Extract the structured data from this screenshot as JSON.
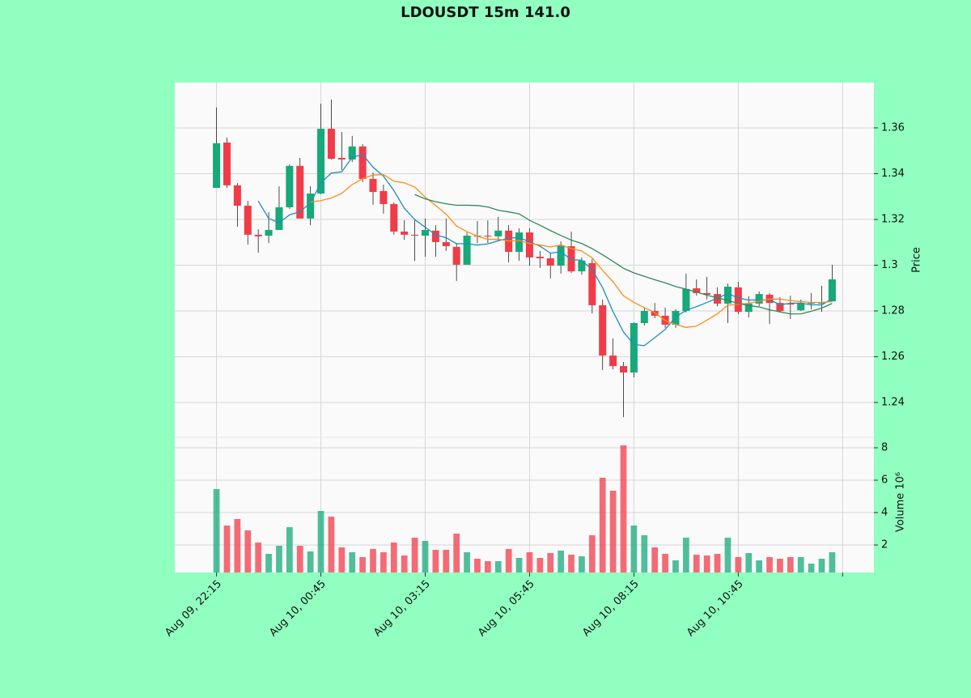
{
  "chart_data": {
    "type": "candlestick",
    "title": "LDOUSDT 15m 141.0",
    "ylabel": "Price",
    "volume_label": "Volume  10⁶",
    "up_color": "#16a97a",
    "down_color": "#f23b48",
    "grid": true,
    "xlim": [
      -4,
      63
    ],
    "xticks": [
      {
        "value": 0,
        "label": "Aug 09, 22:15"
      },
      {
        "value": 10,
        "label": "Aug 10, 00:45"
      },
      {
        "value": 20,
        "label": "Aug 10, 03:15"
      },
      {
        "value": 30,
        "label": "Aug 10, 05:45"
      },
      {
        "value": 40,
        "label": "Aug 10, 08:15"
      },
      {
        "value": 50,
        "label": "Aug 10, 10:45"
      },
      {
        "value": 60,
        "label": null
      }
    ],
    "ylim": [
      1.2248,
      1.3798
    ],
    "yticks": [
      1.24,
      1.26,
      1.28,
      1.3,
      1.32,
      1.34,
      1.36
    ],
    "volume_ylim": [
      0.3,
      8.65
    ],
    "volume_ticks": [
      2,
      4,
      6,
      8
    ],
    "moving_averages": [
      {
        "period": 5,
        "color": "#1a8fc0"
      },
      {
        "period": 10,
        "color": "#ff8c1a"
      },
      {
        "period": 20,
        "color": "#2e8b57"
      }
    ],
    "open": [
      1.3338,
      1.3536,
      1.3349,
      1.326,
      1.3133,
      1.3129,
      1.3154,
      1.3253,
      1.3434,
      1.3204,
      1.3313,
      1.3596,
      1.3469,
      1.3462,
      1.3519,
      1.3377,
      1.3324,
      1.3267,
      1.3147,
      1.3133,
      1.3129,
      1.3151,
      1.3101,
      1.308,
      1.3002,
      1.3129,
      1.3129,
      1.3126,
      1.3151,
      1.3058,
      1.3143,
      1.3037,
      1.303,
      1.2998,
      1.3083,
      1.2973,
      1.3009,
      1.2825,
      1.2605,
      1.2559,
      1.2531,
      1.2747,
      1.28,
      1.2779,
      1.274,
      1.28,
      1.2899,
      1.2878,
      1.2874,
      1.2832,
      1.2903,
      1.2796,
      1.2832,
      1.2871,
      1.2835,
      1.2832,
      1.2803,
      1.2832,
      1.2832,
      1.2842
    ],
    "high": [
      1.3689,
      1.3558,
      1.3359,
      1.3281,
      1.3157,
      1.3232,
      1.3345,
      1.3441,
      1.3469,
      1.3345,
      1.3706,
      1.3724,
      1.3582,
      1.3565,
      1.3529,
      1.3405,
      1.3352,
      1.3274,
      1.3196,
      1.3196,
      1.3204,
      1.3175,
      1.3204,
      1.3097,
      1.3143,
      1.3193,
      1.3196,
      1.3211,
      1.3175,
      1.3161,
      1.3161,
      1.3062,
      1.3055,
      1.3104,
      1.3147,
      1.3034,
      1.3027,
      1.285,
      1.268,
      1.2577,
      1.275,
      1.2814,
      1.2835,
      1.2814,
      1.2807,
      1.2963,
      1.2938,
      1.2949,
      1.2903,
      1.292,
      1.2927,
      1.2864,
      1.2885,
      1.2878,
      1.286,
      1.2867,
      1.285,
      1.2878,
      1.291,
      1.3002
    ],
    "low": [
      1.3338,
      1.3338,
      1.3168,
      1.309,
      1.3055,
      1.3097,
      1.3154,
      1.3246,
      1.3204,
      1.3175,
      1.331,
      1.3462,
      1.3416,
      1.3451,
      1.3363,
      1.3264,
      1.3225,
      1.3133,
      1.3111,
      1.3019,
      1.3037,
      1.3037,
      1.3062,
      1.2931,
      1.3002,
      1.3097,
      1.3097,
      1.3104,
      1.3012,
      1.3019,
      1.2998,
      1.2988,
      1.2942,
      1.2963,
      1.2966,
      1.2959,
      1.2789,
      1.2542,
      1.2545,
      1.2336,
      1.251,
      1.2736,
      1.2768,
      1.2726,
      1.2726,
      1.2793,
      1.2867,
      1.285,
      1.2821,
      1.2747,
      1.2786,
      1.2772,
      1.2821,
      1.2743,
      1.2793,
      1.2765,
      1.28,
      1.2807,
      1.2796,
      1.2842
    ],
    "close": [
      1.3533,
      1.3349,
      1.326,
      1.3133,
      1.3126,
      1.3154,
      1.3253,
      1.3434,
      1.3204,
      1.3313,
      1.3596,
      1.3465,
      1.3462,
      1.3519,
      1.3377,
      1.332,
      1.3267,
      1.3147,
      1.3133,
      1.3129,
      1.3154,
      1.3101,
      1.3083,
      1.3002,
      1.3129,
      1.3126,
      1.3126,
      1.3151,
      1.3058,
      1.3143,
      1.3034,
      1.303,
      1.2998,
      1.3087,
      1.2973,
      1.302,
      1.2825,
      1.2605,
      1.2559,
      1.2531,
      1.2747,
      1.28,
      1.2779,
      1.274,
      1.28,
      1.2896,
      1.2878,
      1.2871,
      1.2832,
      1.2906,
      1.2796,
      1.2832,
      1.2874,
      1.2835,
      1.28,
      1.2828,
      1.2835,
      1.2835,
      1.2835,
      1.2938
    ],
    "volume": [
      5.45,
      3.2,
      3.6,
      2.9,
      2.15,
      1.45,
      1.95,
      3.1,
      1.95,
      1.6,
      4.1,
      3.75,
      1.85,
      1.55,
      1.25,
      1.75,
      1.55,
      2.15,
      1.35,
      2.45,
      2.25,
      1.7,
      1.7,
      2.7,
      1.55,
      1.15,
      1.0,
      1.0,
      1.75,
      1.2,
      1.55,
      1.2,
      1.5,
      1.65,
      1.4,
      1.3,
      2.6,
      6.15,
      5.35,
      8.15,
      3.2,
      2.6,
      1.85,
      1.45,
      1.05,
      2.45,
      1.4,
      1.35,
      1.45,
      2.45,
      1.25,
      1.5,
      1.05,
      1.25,
      1.15,
      1.25,
      1.25,
      0.85,
      1.15,
      1.55
    ]
  }
}
